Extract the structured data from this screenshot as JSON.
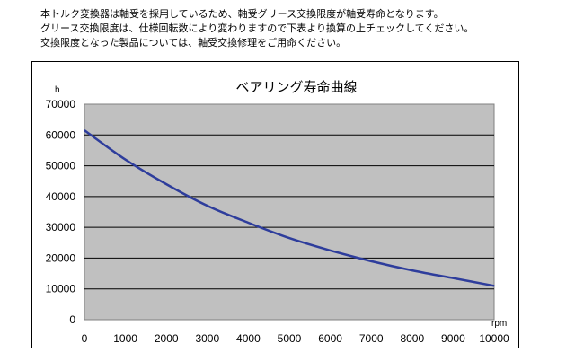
{
  "intro": {
    "line1": "本トルク変換器は軸受を採用しているため、軸受グリース交換限度が軸受寿命となります。",
    "line2": "グリース交換限度は、仕様回転数により変わりますので下表より換算の上チェックしてください。",
    "line3": "交換限度となった製品については、軸受交換修理をご用命ください。"
  },
  "chart_data": {
    "type": "line",
    "title": "ベアリング寿命曲線",
    "xlabel": "rpm",
    "ylabel": "h",
    "xlim": [
      0,
      10000
    ],
    "ylim": [
      0,
      70000
    ],
    "x_ticks": [
      0,
      1000,
      2000,
      3000,
      4000,
      5000,
      6000,
      7000,
      8000,
      9000,
      10000
    ],
    "y_ticks": [
      0,
      10000,
      20000,
      30000,
      40000,
      50000,
      60000,
      70000
    ],
    "grid": "horizontal",
    "background": "#c0c0c0",
    "line_color": "#2e3d9c",
    "series": [
      {
        "name": "",
        "x": [
          0,
          1000,
          2000,
          3000,
          4000,
          5000,
          6000,
          7000,
          8000,
          9000,
          10000
        ],
        "y": [
          61500,
          52000,
          44000,
          37000,
          31500,
          26500,
          22500,
          19000,
          16000,
          13500,
          11000
        ]
      }
    ]
  }
}
